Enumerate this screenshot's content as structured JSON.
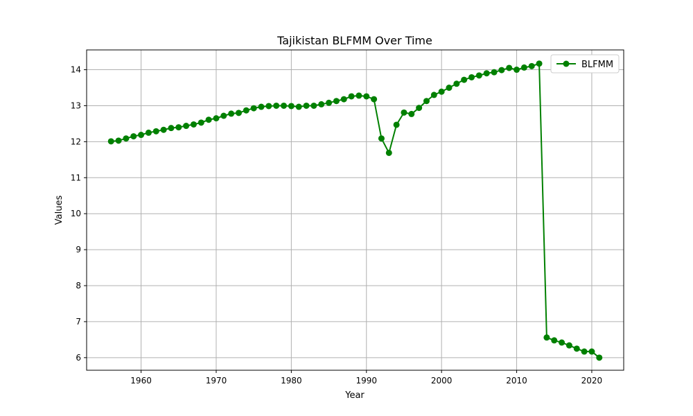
{
  "chart_data": {
    "type": "line",
    "title": "Tajikistan BLFMM Over Time",
    "xlabel": "Year",
    "ylabel": "Values",
    "xlim": [
      1952.75,
      2024.25
    ],
    "ylim": [
      5.65,
      14.55
    ],
    "xticks": [
      1960,
      1970,
      1980,
      1990,
      2000,
      2010,
      2020
    ],
    "yticks": [
      6,
      7,
      8,
      9,
      10,
      11,
      12,
      13,
      14
    ],
    "grid": true,
    "legend_position": "top-right",
    "series": [
      {
        "name": "BLFMM",
        "color": "#008000",
        "marker": "circle",
        "x": [
          1956,
          1957,
          1958,
          1959,
          1960,
          1961,
          1962,
          1963,
          1964,
          1965,
          1966,
          1967,
          1968,
          1969,
          1970,
          1971,
          1972,
          1973,
          1974,
          1975,
          1976,
          1977,
          1978,
          1979,
          1980,
          1981,
          1982,
          1983,
          1984,
          1985,
          1986,
          1987,
          1988,
          1989,
          1990,
          1991,
          1992,
          1993,
          1994,
          1995,
          1996,
          1997,
          1998,
          1999,
          2000,
          2001,
          2002,
          2003,
          2004,
          2005,
          2006,
          2007,
          2008,
          2009,
          2010,
          2011,
          2012,
          2013,
          2014,
          2015,
          2016,
          2017,
          2018,
          2019,
          2020,
          2021
        ],
        "values": [
          12.01,
          12.03,
          12.09,
          12.15,
          12.19,
          12.25,
          12.29,
          12.33,
          12.38,
          12.4,
          12.44,
          12.48,
          12.53,
          12.61,
          12.65,
          12.72,
          12.78,
          12.8,
          12.87,
          12.93,
          12.97,
          12.99,
          13.0,
          13.0,
          12.99,
          12.97,
          13.0,
          13.0,
          13.04,
          13.08,
          13.13,
          13.18,
          13.26,
          13.28,
          13.26,
          13.18,
          12.09,
          11.69,
          12.47,
          12.81,
          12.77,
          12.94,
          13.13,
          13.3,
          13.39,
          13.5,
          13.61,
          13.72,
          13.79,
          13.84,
          13.9,
          13.93,
          13.99,
          14.05,
          14.0,
          14.06,
          14.1,
          14.17,
          6.56,
          6.48,
          6.42,
          6.34,
          6.25,
          6.17,
          6.17,
          6.0
        ]
      }
    ]
  }
}
